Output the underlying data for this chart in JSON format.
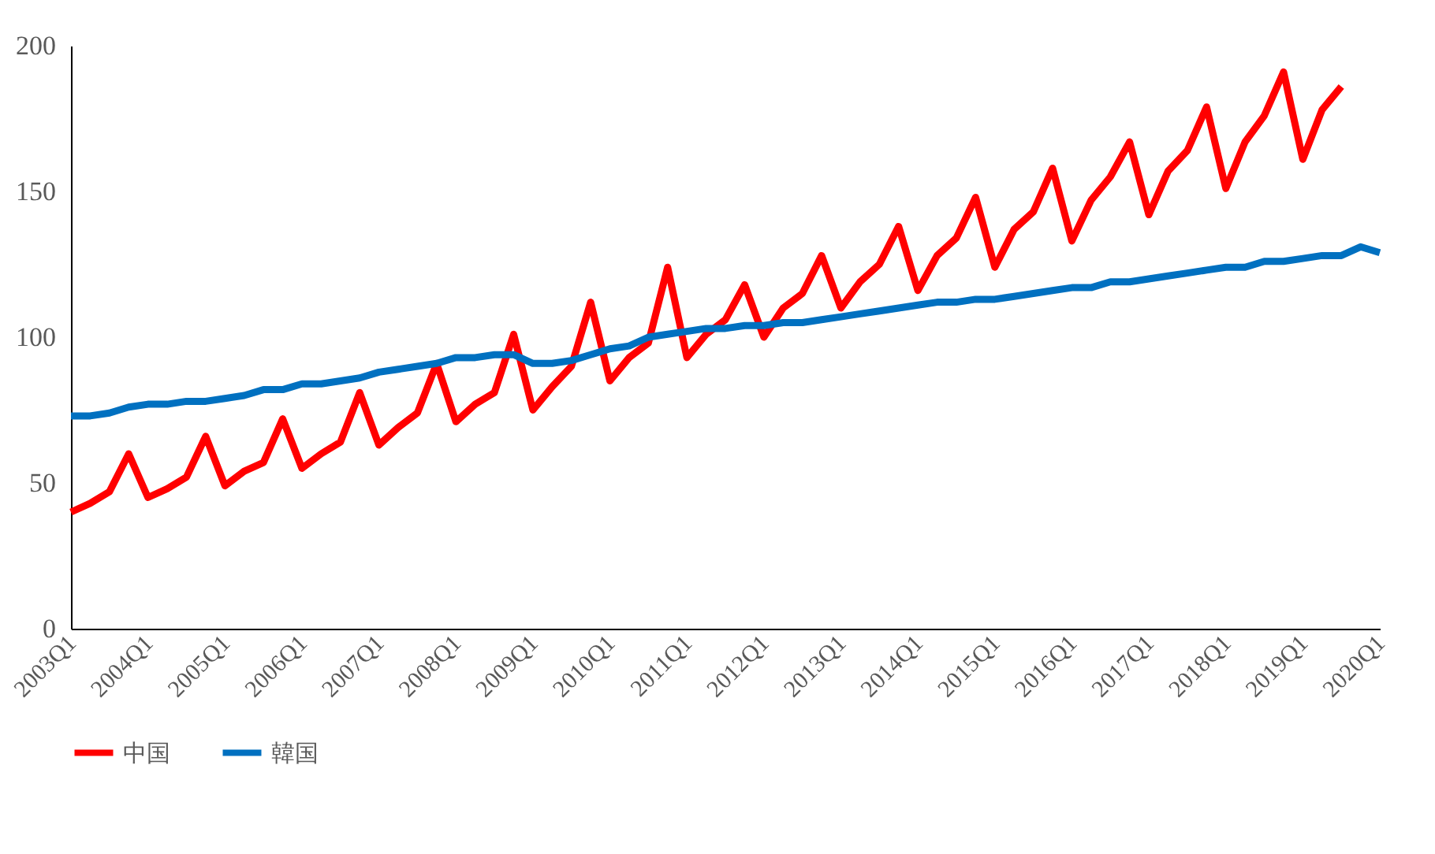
{
  "chart_data": {
    "type": "line",
    "categories": [
      "2003Q1",
      null,
      null,
      null,
      "2004Q1",
      null,
      null,
      null,
      "2005Q1",
      null,
      null,
      null,
      "2006Q1",
      null,
      null,
      null,
      "2007Q1",
      null,
      null,
      null,
      "2008Q1",
      null,
      null,
      null,
      "2009Q1",
      null,
      null,
      null,
      "2010Q1",
      null,
      null,
      null,
      "2011Q1",
      null,
      null,
      null,
      "2012Q1",
      null,
      null,
      null,
      "2013Q1",
      null,
      null,
      null,
      "2014Q1",
      null,
      null,
      null,
      "2015Q1",
      null,
      null,
      null,
      "2016Q1",
      null,
      null,
      null,
      "2017Q1",
      null,
      null,
      null,
      "2018Q1",
      null,
      null,
      null,
      "2019Q1",
      null,
      null,
      null,
      "2020Q1"
    ],
    "series": [
      {
        "name": "中国",
        "color": "#ff0000",
        "values": [
          40,
          43,
          47,
          60,
          45,
          48,
          52,
          66,
          49,
          54,
          57,
          72,
          55,
          60,
          64,
          81,
          63,
          69,
          74,
          91,
          71,
          77,
          81,
          101,
          75,
          83,
          90,
          112,
          85,
          93,
          98,
          124,
          93,
          101,
          106,
          118,
          100,
          110,
          115,
          128,
          110,
          119,
          125,
          138,
          116,
          128,
          134,
          148,
          124,
          137,
          143,
          158,
          133,
          147,
          155,
          167,
          142,
          157,
          164,
          179,
          151,
          167,
          176,
          191,
          161,
          178,
          186,
          null,
          null
        ]
      },
      {
        "name": "韓国",
        "color": "#0070c0",
        "values": [
          73,
          73,
          74,
          76,
          77,
          77,
          78,
          78,
          79,
          80,
          82,
          82,
          84,
          84,
          85,
          86,
          88,
          89,
          90,
          91,
          93,
          93,
          94,
          94,
          91,
          91,
          92,
          94,
          96,
          97,
          100,
          101,
          102,
          103,
          103,
          104,
          104,
          105,
          105,
          106,
          107,
          108,
          109,
          110,
          111,
          112,
          112,
          113,
          113,
          114,
          115,
          116,
          117,
          117,
          119,
          119,
          120,
          121,
          122,
          123,
          124,
          124,
          126,
          126,
          127,
          128,
          128,
          131,
          129
        ]
      }
    ],
    "ylim": [
      0,
      200
    ],
    "yticks": [
      0,
      50,
      100,
      150,
      200
    ],
    "grid": false,
    "legend": "bottom",
    "line_style": "solid",
    "marker": "none"
  }
}
